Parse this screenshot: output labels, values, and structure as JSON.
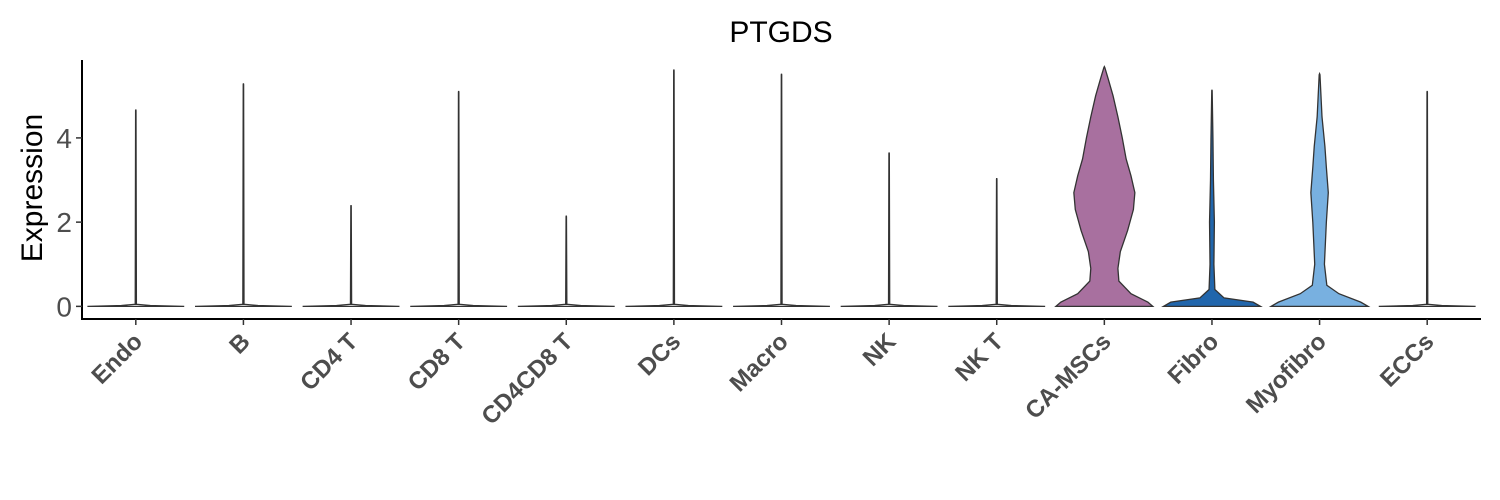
{
  "chart_data": {
    "type": "violin",
    "title": "PTGDS",
    "xlabel": "",
    "ylabel": "Expression",
    "ylim": [
      -0.3,
      5.85
    ],
    "yticks": [
      0,
      2,
      4
    ],
    "grid": false,
    "legend": "none",
    "categories": [
      "Endo",
      "B",
      "CD4 T",
      "CD8 T",
      "CD4CD8 T",
      "DCs",
      "Macro",
      "NK",
      "NK T",
      "CA-MSCs",
      "Fibro",
      "Myofibro",
      "ECCs"
    ],
    "colors": [
      "#ffffff",
      "#ffffff",
      "#ffffff",
      "#ffffff",
      "#ffffff",
      "#ffffff",
      "#ffffff",
      "#ffffff",
      "#ffffff",
      "#a8709f",
      "#2166ac",
      "#78b0e0",
      "#ffffff"
    ],
    "max_expression": [
      4.65,
      5.27,
      2.38,
      5.09,
      2.13,
      5.6,
      5.5,
      3.63,
      3.02,
      5.67,
      5.12,
      5.5,
      5.09
    ],
    "density_profiles": [
      [
        [
          0,
          1
        ],
        [
          0.02,
          0.3
        ],
        [
          0.05,
          0.012
        ],
        [
          4.65,
          0.004
        ]
      ],
      [
        [
          0,
          1
        ],
        [
          0.02,
          0.3
        ],
        [
          0.05,
          0.012
        ],
        [
          5.27,
          0.004
        ]
      ],
      [
        [
          0,
          1
        ],
        [
          0.02,
          0.3
        ],
        [
          0.05,
          0.012
        ],
        [
          2.38,
          0.004
        ]
      ],
      [
        [
          0,
          1
        ],
        [
          0.02,
          0.3
        ],
        [
          0.05,
          0.012
        ],
        [
          5.09,
          0.004
        ]
      ],
      [
        [
          0,
          1
        ],
        [
          0.02,
          0.3
        ],
        [
          0.05,
          0.012
        ],
        [
          2.13,
          0.004
        ]
      ],
      [
        [
          0,
          1
        ],
        [
          0.02,
          0.3
        ],
        [
          0.05,
          0.012
        ],
        [
          5.6,
          0.004
        ]
      ],
      [
        [
          0,
          1
        ],
        [
          0.02,
          0.3
        ],
        [
          0.05,
          0.012
        ],
        [
          5.5,
          0.004
        ]
      ],
      [
        [
          0,
          1
        ],
        [
          0.02,
          0.3
        ],
        [
          0.05,
          0.012
        ],
        [
          3.63,
          0.004
        ]
      ],
      [
        [
          0,
          1
        ],
        [
          0.02,
          0.3
        ],
        [
          0.05,
          0.012
        ],
        [
          3.02,
          0.004
        ]
      ],
      [
        [
          0,
          1
        ],
        [
          0.1,
          0.9
        ],
        [
          0.3,
          0.55
        ],
        [
          0.6,
          0.3
        ],
        [
          0.9,
          0.28
        ],
        [
          1.3,
          0.33
        ],
        [
          1.8,
          0.48
        ],
        [
          2.3,
          0.6
        ],
        [
          2.7,
          0.63
        ],
        [
          3.1,
          0.55
        ],
        [
          3.5,
          0.45
        ],
        [
          4.0,
          0.37
        ],
        [
          4.5,
          0.28
        ],
        [
          5.0,
          0.18
        ],
        [
          5.4,
          0.08
        ],
        [
          5.67,
          0.01
        ]
      ],
      [
        [
          0,
          1
        ],
        [
          0.1,
          0.85
        ],
        [
          0.2,
          0.25
        ],
        [
          0.4,
          0.06
        ],
        [
          1.0,
          0.04
        ],
        [
          2.0,
          0.05
        ],
        [
          3.0,
          0.03
        ],
        [
          4.0,
          0.02
        ],
        [
          5.12,
          0.004
        ]
      ],
      [
        [
          0,
          1
        ],
        [
          0.1,
          0.85
        ],
        [
          0.3,
          0.4
        ],
        [
          0.5,
          0.15
        ],
        [
          1.0,
          0.1
        ],
        [
          2.0,
          0.14
        ],
        [
          2.7,
          0.18
        ],
        [
          3.3,
          0.14
        ],
        [
          3.8,
          0.11
        ],
        [
          4.5,
          0.05
        ],
        [
          5.5,
          0.008
        ]
      ],
      [
        [
          0,
          1
        ],
        [
          0.02,
          0.3
        ],
        [
          0.05,
          0.012
        ],
        [
          5.09,
          0.004
        ]
      ]
    ]
  }
}
